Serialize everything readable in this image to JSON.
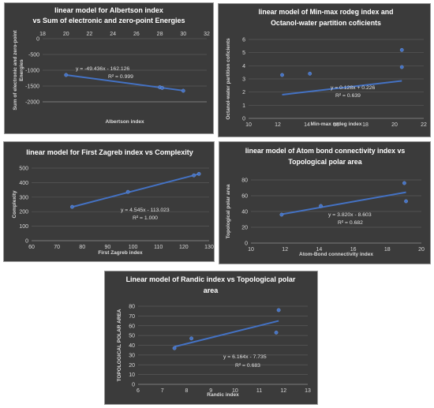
{
  "chart_data": [
    {
      "type": "scatter",
      "title": [
        "linear model for Albertson index",
        "vs  Sum of electronic and zero-point Energies"
      ],
      "xlabel": "Albertson index",
      "ylabel": [
        "Sum of electronic and zero-point",
        "Energies"
      ],
      "xlim": [
        18,
        32
      ],
      "ylim": [
        -2000,
        0
      ],
      "xticks": [
        "18",
        "20",
        "22",
        "24",
        "26",
        "28",
        "30",
        "32"
      ],
      "yticks": [
        "0",
        "-500",
        "-1000",
        "-1500",
        "-2000"
      ],
      "points": [
        [
          20,
          -1150
        ],
        [
          28,
          -1540
        ],
        [
          28.2,
          -1560
        ],
        [
          30,
          -1650
        ]
      ],
      "trendline": {
        "slope": -49.436,
        "intercept": -162.126,
        "x0": 20,
        "x1": 30
      },
      "equation": "y = -49.436x - 162.126",
      "r2": "R² = 0.999",
      "grid": true,
      "color": "#4472c4"
    },
    {
      "type": "scatter",
      "title": [
        "linear model of Min-max rodeg index and",
        "Octanol-water partition coficients"
      ],
      "xlabel": "Min-max rodeg index",
      "ylabel": [
        "Octanol-water partition coficients"
      ],
      "xlim": [
        10,
        22
      ],
      "ylim": [
        0,
        6
      ],
      "xticks": [
        "10",
        "12",
        "14",
        "16",
        "18",
        "20",
        "22"
      ],
      "yticks": [
        "6",
        "5",
        "4",
        "3",
        "2",
        "1",
        "0"
      ],
      "points": [
        [
          12.3,
          3.3
        ],
        [
          14.2,
          3.4
        ],
        [
          20.5,
          3.9
        ],
        [
          20.5,
          5.2
        ]
      ],
      "trendline": {
        "slope": 0.128,
        "intercept": 0.226,
        "x0": 12.3,
        "x1": 20.5
      },
      "equation": "y = 0.128x + 0.226",
      "r2": "R² = 0.639",
      "grid": true,
      "color": "#4472c4"
    },
    {
      "type": "scatter",
      "title": [
        "linear model for First Zagreb index vs Complexity"
      ],
      "xlabel": "First Zagreb index",
      "ylabel": [
        "Complexity"
      ],
      "xlim": [
        60,
        130
      ],
      "ylim": [
        0,
        500
      ],
      "xticks": [
        "60",
        "70",
        "80",
        "90",
        "100",
        "110",
        "120",
        "130"
      ],
      "yticks": [
        "500",
        "400",
        "300",
        "200",
        "100",
        "0"
      ],
      "points": [
        [
          76,
          233
        ],
        [
          98,
          336
        ],
        [
          124,
          450
        ],
        [
          126,
          460
        ]
      ],
      "trendline": {
        "slope": 4.545,
        "intercept": -113.023,
        "x0": 76,
        "x1": 126
      },
      "equation": "y = 4.545x - 113.023",
      "r2": "R² = 1.000",
      "grid": true,
      "color": "#4472c4"
    },
    {
      "type": "scatter",
      "title": [
        "linear model of Atom bond connectivity index vs",
        "Topological polar area"
      ],
      "xlabel": "Atom-Bond connectivity index",
      "ylabel": [
        "Topological polar area"
      ],
      "xlim": [
        10,
        20
      ],
      "ylim": [
        0,
        80
      ],
      "xticks": [
        "10",
        "12",
        "14",
        "16",
        "18",
        "20"
      ],
      "yticks": [
        "80",
        "60",
        "40",
        "20",
        "0"
      ],
      "points": [
        [
          11.8,
          36
        ],
        [
          14.1,
          47
        ],
        [
          19,
          76
        ],
        [
          19.1,
          53
        ]
      ],
      "trendline": {
        "slope": 3.82,
        "intercept": -8.603,
        "x0": 11.8,
        "x1": 19.1
      },
      "equation": "y = 3.820x - 8.603",
      "r2": "R² = 0.682",
      "grid": true,
      "color": "#4472c4"
    },
    {
      "type": "scatter",
      "title": [
        "Linear model of Randic index vs Topological polar",
        "area"
      ],
      "xlabel": "Randic index",
      "ylabel": [
        "TOPOLOGICAL POLAR AREA"
      ],
      "xlim": [
        6,
        13
      ],
      "ylim": [
        0,
        80
      ],
      "xticks": [
        "6",
        "7",
        "8",
        "9",
        "10",
        "11",
        "12",
        "13"
      ],
      "yticks": [
        "80",
        "70",
        "60",
        "50",
        "40",
        "30",
        "20",
        "10",
        "0"
      ],
      "points": [
        [
          7.5,
          37
        ],
        [
          8.2,
          47
        ],
        [
          11.8,
          76
        ],
        [
          11.7,
          53
        ]
      ],
      "trendline": {
        "slope": 6.164,
        "intercept": -7.735,
        "x0": 7.5,
        "x1": 11.8
      },
      "equation": "y = 6.164x - 7.735",
      "r2": "R² = 0.683",
      "grid": true,
      "color": "#4472c4"
    }
  ]
}
